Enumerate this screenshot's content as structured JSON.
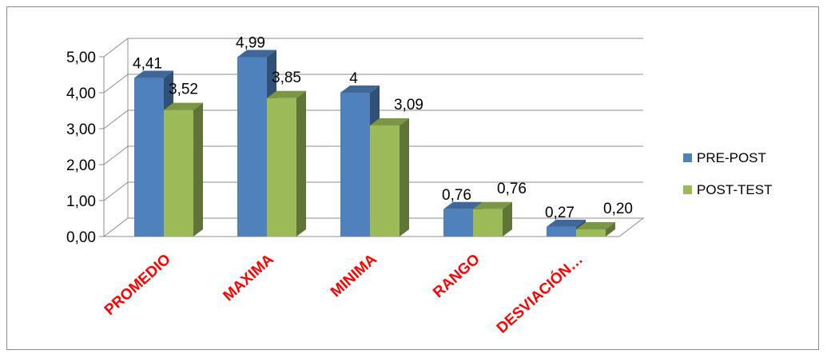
{
  "chart_data": {
    "type": "bar",
    "subtype": "3d-clustered-column",
    "categories": [
      "PROMEDIO",
      "MAXIMA",
      "MINIMA",
      "RANGO",
      "DESVIACIÓN…"
    ],
    "series": [
      {
        "name": "PRE-POST",
        "color": "#4f81bd",
        "values": [
          4.41,
          4.99,
          4,
          0.76,
          0.27
        ],
        "labels": [
          "4,41",
          "4,99",
          "4",
          "0,76",
          "0,27"
        ]
      },
      {
        "name": "POST-TEST",
        "color": "#9bbb59",
        "values": [
          3.52,
          3.85,
          3.09,
          0.76,
          0.2
        ],
        "labels": [
          "3,52",
          "3,85",
          "3,09",
          "0,76",
          "0,20"
        ]
      }
    ],
    "ylim": [
      0,
      5
    ],
    "yticks": [
      0,
      1,
      2,
      3,
      4,
      5
    ],
    "ytick_labels": [
      "0,00",
      "1,00",
      "2,00",
      "3,00",
      "4,00",
      "5,00"
    ],
    "grid": true,
    "legend_position": "right",
    "category_label_color": "#ff0000"
  }
}
